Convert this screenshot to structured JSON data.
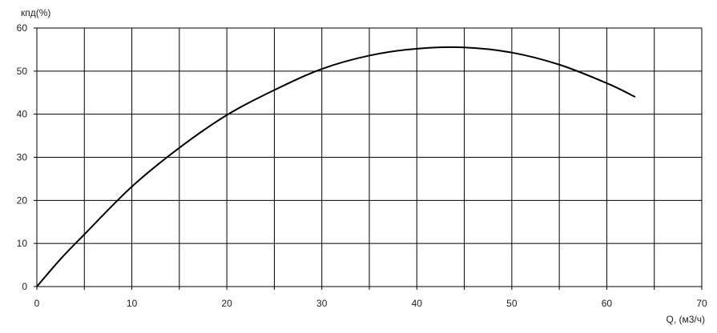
{
  "chart_data": {
    "type": "line",
    "title": "",
    "xlabel": "Q, (м3/ч)",
    "ylabel": "кпд(%)",
    "xlim": [
      0,
      70
    ],
    "ylim": [
      0,
      60
    ],
    "x_ticks": [
      0,
      10,
      20,
      30,
      40,
      50,
      60,
      70
    ],
    "y_ticks": [
      0,
      10,
      20,
      30,
      40,
      50,
      60
    ],
    "x_grid_step": 5,
    "y_grid_step": 10,
    "grid": true,
    "line_color": "#000000",
    "grid_color": "#000000",
    "series": [
      {
        "x": [
          0,
          2.5,
          5,
          10,
          15,
          20,
          25,
          30,
          35,
          40,
          45,
          50,
          55,
          60,
          63
        ],
        "y": [
          0,
          6.4,
          12.1,
          23.2,
          32.2,
          39.8,
          45.6,
          50.5,
          53.6,
          55.2,
          55.5,
          54.3,
          51.5,
          47.2,
          44.0
        ]
      }
    ]
  }
}
